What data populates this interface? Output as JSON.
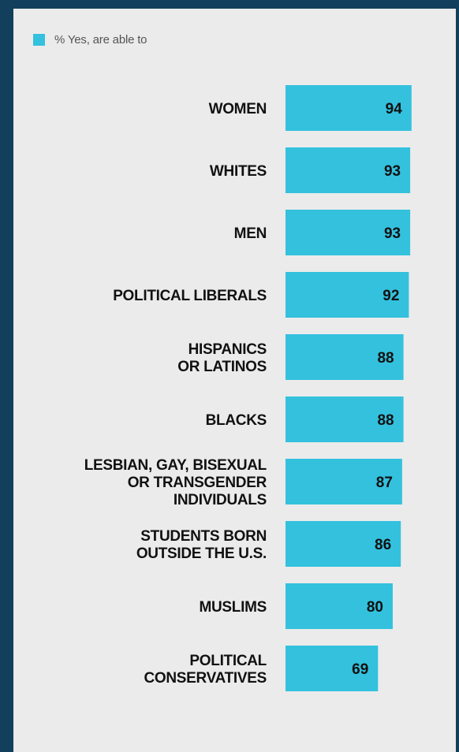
{
  "chart_data": {
    "type": "bar",
    "orientation": "horizontal",
    "legend": {
      "label": "% Yes, are able to",
      "position": "top-left"
    },
    "series": [
      {
        "name": "% Yes, are able to",
        "color": "#33c1de",
        "values": [
          94,
          93,
          93,
          92,
          88,
          88,
          87,
          86,
          80,
          69
        ]
      }
    ],
    "categories": [
      [
        "WOMEN"
      ],
      [
        "WHITES"
      ],
      [
        "MEN"
      ],
      [
        "POLITICAL LIBERALS"
      ],
      [
        "HISPANICS",
        "OR LATINOS"
      ],
      [
        "BLACKS"
      ],
      [
        "LESBIAN, GAY, BISEXUAL",
        "OR TRANSGENDER",
        "INDIVIDUALS"
      ],
      [
        "STUDENTS BORN",
        "OUTSIDE THE U.S."
      ],
      [
        "MUSLIMS"
      ],
      [
        "POLITICAL",
        "CONSERVATIVES"
      ]
    ],
    "grid": false
  }
}
